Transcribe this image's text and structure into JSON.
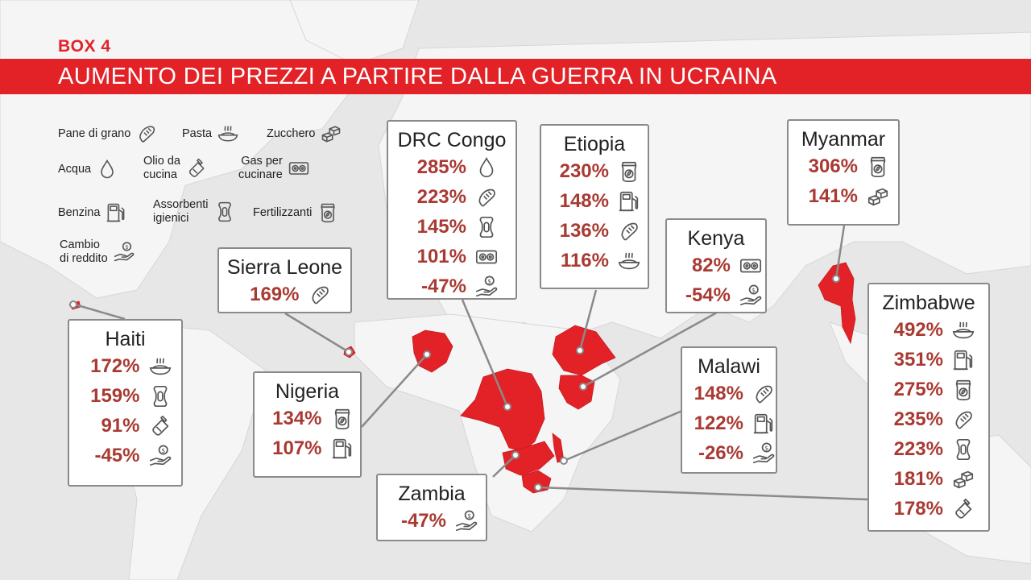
{
  "box_label": "BOX 4",
  "title": "AUMENTO DEI PREZZI A PARTIRE DALLA GUERRA IN UCRAINA",
  "accent_color": "#e32228",
  "value_color": "#a93a33",
  "legend": [
    {
      "label": "Pane di grano",
      "icon": "bread-icon"
    },
    {
      "label": "Pasta",
      "icon": "pasta-icon"
    },
    {
      "label": "Zucchero",
      "icon": "sugar-icon"
    },
    {
      "label": "Acqua",
      "icon": "water-icon"
    },
    {
      "label": "Olio da\ncucina",
      "icon": "oil-bottle-icon"
    },
    {
      "label": "Gas per\ncucinare",
      "icon": "stove-icon"
    },
    {
      "label": "Benzina",
      "icon": "fuel-icon"
    },
    {
      "label": "Assorbenti\nigienici",
      "icon": "pad-icon"
    },
    {
      "label": "Fertilizzanti",
      "icon": "fertilizer-icon"
    },
    {
      "label": "Cambio\ndi reddito",
      "icon": "income-icon"
    }
  ],
  "countries": [
    {
      "id": "haiti",
      "name": "Haiti",
      "rows": [
        {
          "value": "172%",
          "icon": "pasta-icon"
        },
        {
          "value": "159%",
          "icon": "pad-icon"
        },
        {
          "value": "91%",
          "icon": "oil-bottle-icon"
        },
        {
          "value": "-45%",
          "icon": "income-icon"
        }
      ]
    },
    {
      "id": "sierra-leone",
      "name": "Sierra Leone",
      "rows": [
        {
          "value": "169%",
          "icon": "bread-icon"
        }
      ]
    },
    {
      "id": "nigeria",
      "name": "Nigeria",
      "rows": [
        {
          "value": "134%",
          "icon": "fertilizer-icon"
        },
        {
          "value": "107%",
          "icon": "fuel-icon"
        }
      ]
    },
    {
      "id": "drc-congo",
      "name": "DRC Congo",
      "rows": [
        {
          "value": "285%",
          "icon": "water-icon"
        },
        {
          "value": "223%",
          "icon": "bread-icon"
        },
        {
          "value": "145%",
          "icon": "pad-icon"
        },
        {
          "value": "101%",
          "icon": "stove-icon"
        },
        {
          "value": "-47%",
          "icon": "income-icon"
        }
      ]
    },
    {
      "id": "etiopia",
      "name": "Etiopia",
      "rows": [
        {
          "value": "230%",
          "icon": "fertilizer-icon"
        },
        {
          "value": "148%",
          "icon": "fuel-icon"
        },
        {
          "value": "136%",
          "icon": "bread-icon"
        },
        {
          "value": "116%",
          "icon": "pasta-icon"
        }
      ]
    },
    {
      "id": "kenya",
      "name": "Kenya",
      "rows": [
        {
          "value": "82%",
          "icon": "stove-icon"
        },
        {
          "value": "-54%",
          "icon": "income-icon"
        }
      ]
    },
    {
      "id": "myanmar",
      "name": "Myanmar",
      "rows": [
        {
          "value": "306%",
          "icon": "fertilizer-icon"
        },
        {
          "value": "141%",
          "icon": "sugar-icon"
        }
      ]
    },
    {
      "id": "malawi",
      "name": "Malawi",
      "rows": [
        {
          "value": "148%",
          "icon": "bread-icon"
        },
        {
          "value": "122%",
          "icon": "fuel-icon"
        },
        {
          "value": "-26%",
          "icon": "income-icon"
        }
      ]
    },
    {
      "id": "zambia",
      "name": "Zambia",
      "rows": [
        {
          "value": "-47%",
          "icon": "income-icon"
        }
      ]
    },
    {
      "id": "zimbabwe",
      "name": "Zimbabwe",
      "rows": [
        {
          "value": "492%",
          "icon": "pasta-icon"
        },
        {
          "value": "351%",
          "icon": "fuel-icon"
        },
        {
          "value": "275%",
          "icon": "fertilizer-icon"
        },
        {
          "value": "235%",
          "icon": "bread-icon"
        },
        {
          "value": "223%",
          "icon": "pad-icon"
        },
        {
          "value": "181%",
          "icon": "sugar-icon"
        },
        {
          "value": "178%",
          "icon": "oil-bottle-icon"
        }
      ]
    }
  ]
}
